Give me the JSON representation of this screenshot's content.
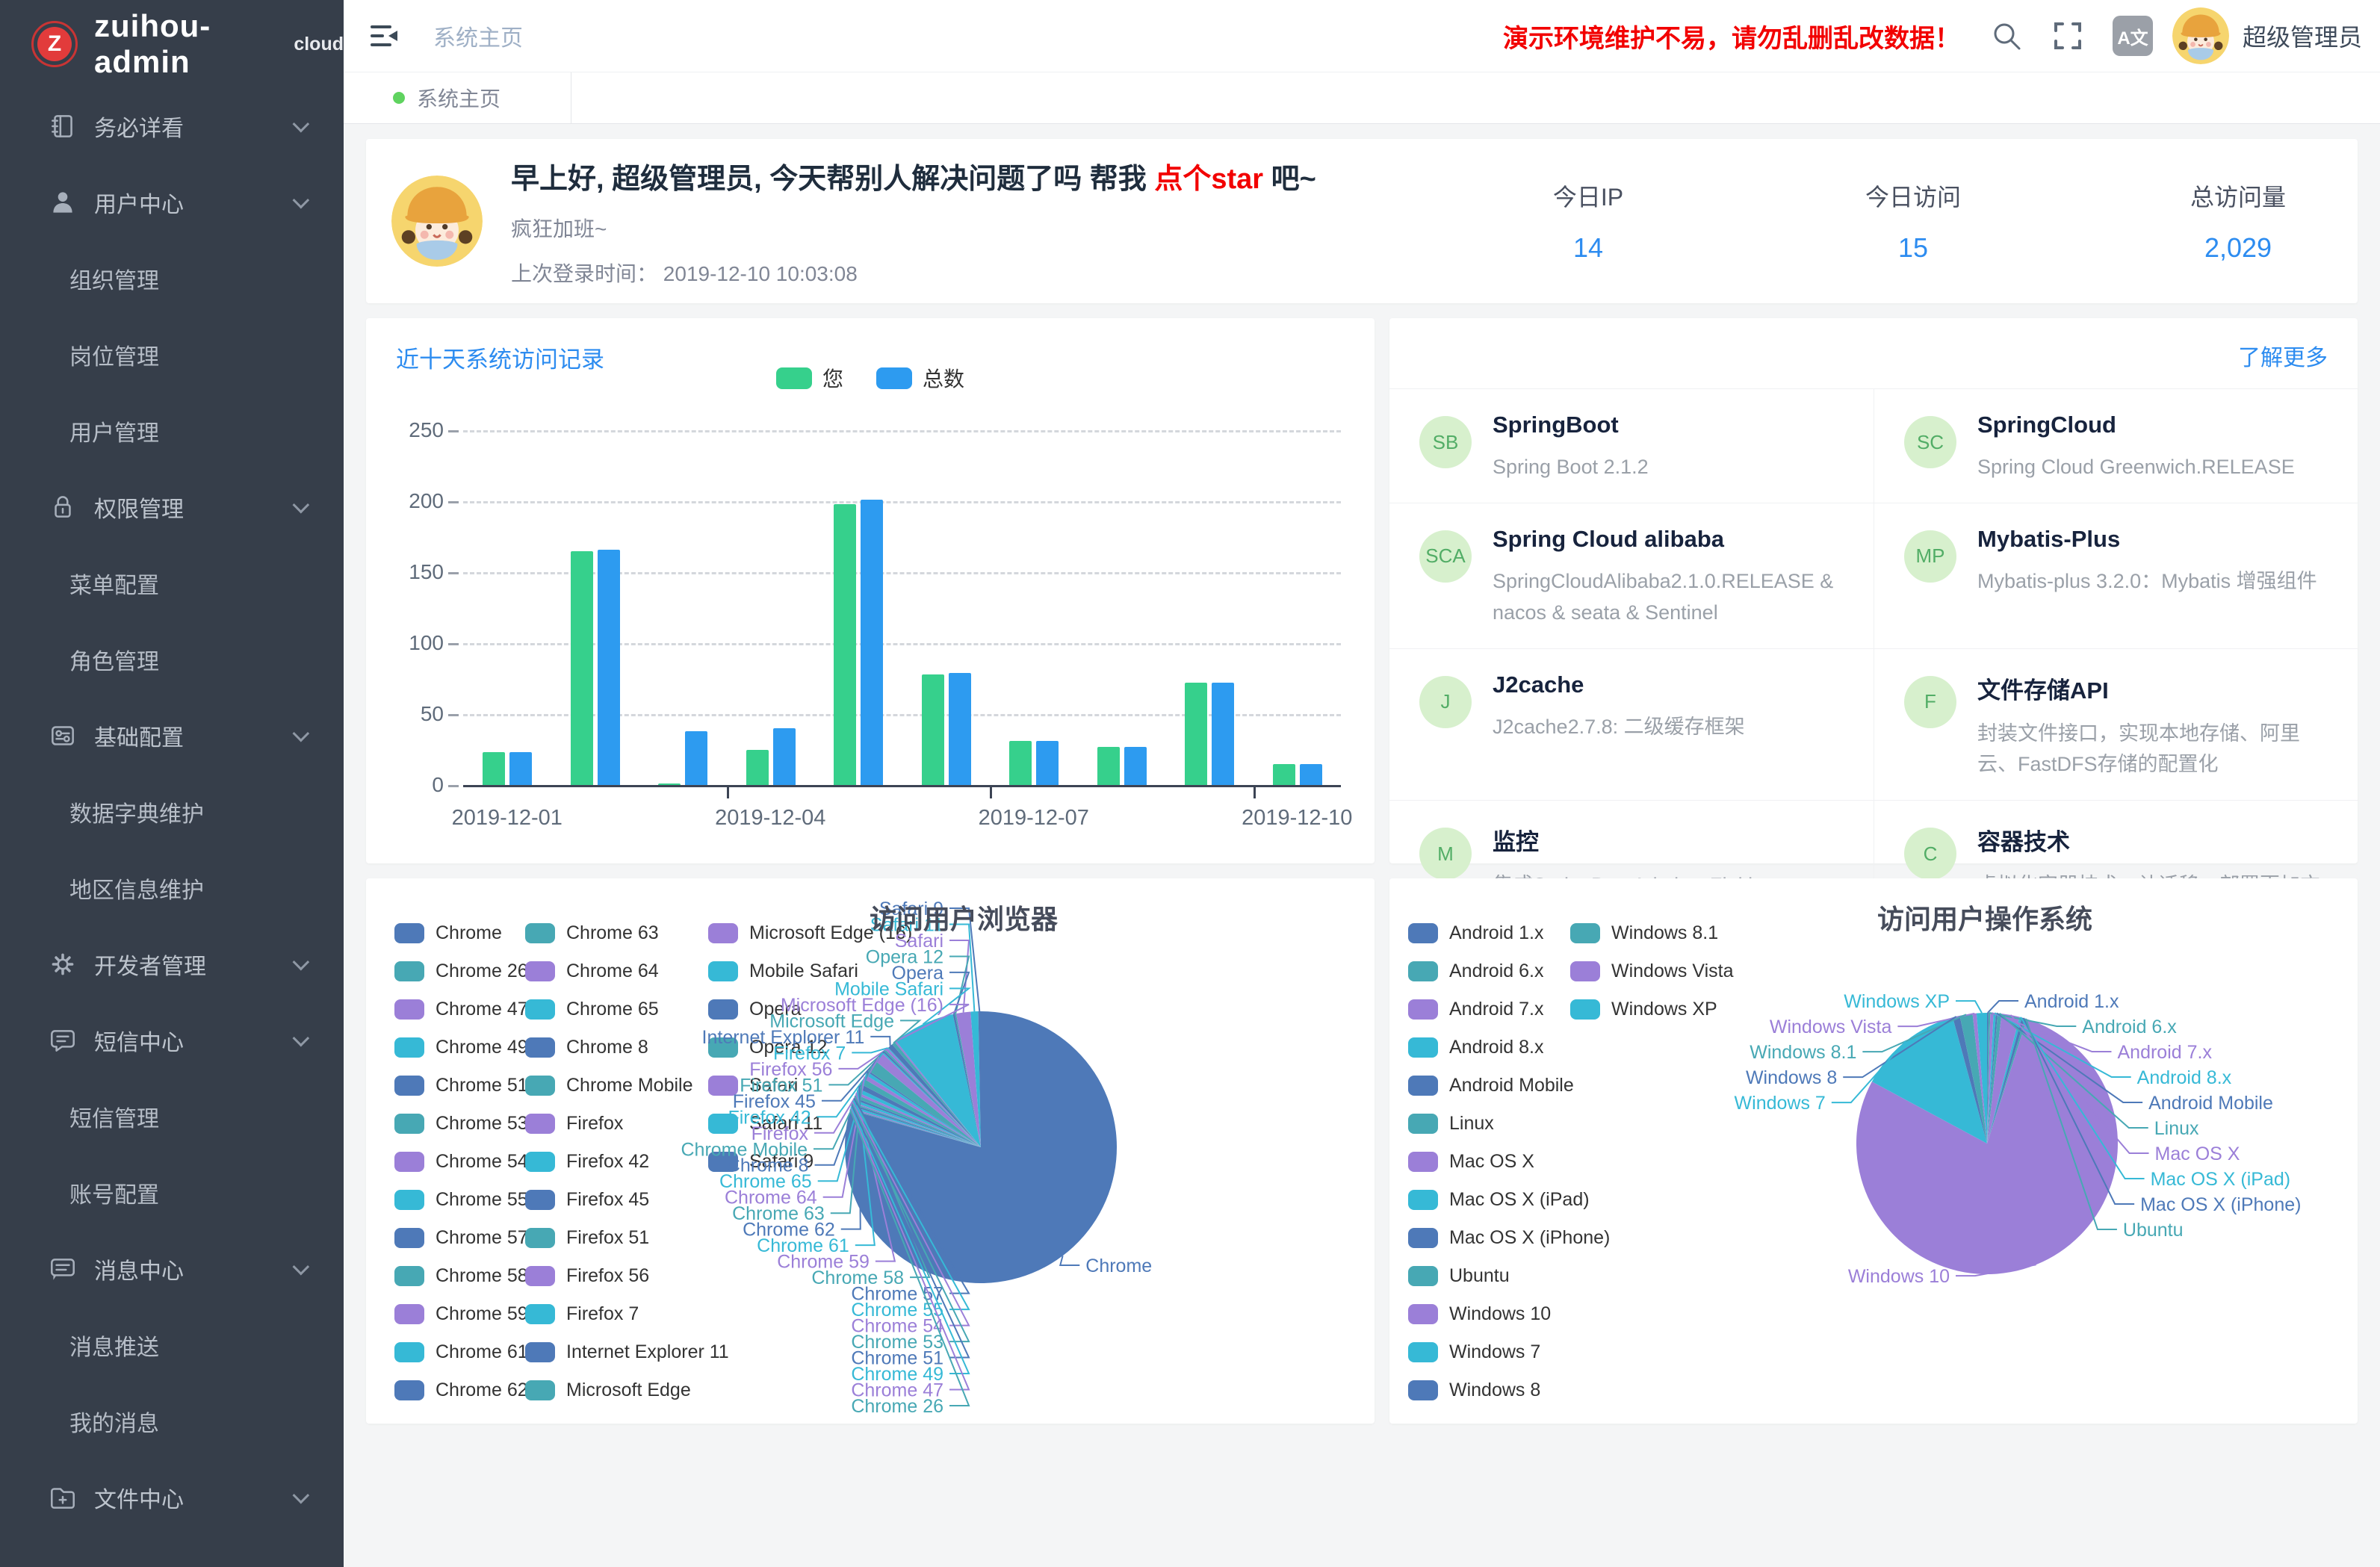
{
  "colors": {
    "accent_blue": "#2d8cf0",
    "warning_red": "#f20000",
    "bar_green": "#36d08c",
    "bar_blue": "#2d9bf0",
    "pie_palette": [
      "#4e79b8",
      "#47a8b4",
      "#9b7fd8",
      "#36b9d6"
    ],
    "sidebar_bg": "#363e4a",
    "tab_dot_green": "#5fd35f"
  },
  "sidebar": {
    "logo": {
      "letter": "Z",
      "title": "zuihou-admin",
      "suffix": "cloud"
    },
    "menu": [
      {
        "label": "务必详看",
        "icon": "book-icon",
        "children": []
      },
      {
        "label": "用户中心",
        "icon": "user-icon",
        "children": [
          "组织管理",
          "岗位管理",
          "用户管理"
        ]
      },
      {
        "label": "权限管理",
        "icon": "lock-icon",
        "children": [
          "菜单配置",
          "角色管理"
        ]
      },
      {
        "label": "基础配置",
        "icon": "config-icon",
        "children": [
          "数据字典维护",
          "地区信息维护"
        ]
      },
      {
        "label": "开发者管理",
        "icon": "gear-icon",
        "children": []
      },
      {
        "label": "短信中心",
        "icon": "sms-icon",
        "children": [
          "短信管理",
          "账号配置"
        ]
      },
      {
        "label": "消息中心",
        "icon": "message-icon",
        "children": [
          "消息推送",
          "我的消息"
        ]
      },
      {
        "label": "文件中心",
        "icon": "folder-icon",
        "children": []
      }
    ]
  },
  "header": {
    "breadcrumb": "系统主页",
    "warning": "演示环境维护不易，请勿乱删乱改数据！",
    "lang_icon_text": "A文",
    "username": "超级管理员"
  },
  "tabs": [
    {
      "label": "系统主页",
      "active": true
    }
  ],
  "greeting": {
    "title_prefix": "早上好, 超级管理员, 今天帮别人解决问题了吗 帮我 ",
    "title_link": "点个star",
    "title_suffix": " 吧~",
    "subtitle": "疯狂加班~",
    "last_login_label": "上次登录时间：",
    "last_login_value": "2019-12-10 10:03:08",
    "stats": [
      {
        "label": "今日IP",
        "value": "14"
      },
      {
        "label": "今日访问",
        "value": "15"
      },
      {
        "label": "总访问量",
        "value": "2,029"
      }
    ]
  },
  "tech_panel": {
    "more_link": "了解更多",
    "cards": [
      {
        "abbr": "SB",
        "title": "SpringBoot",
        "desc": "Spring Boot 2.1.2"
      },
      {
        "abbr": "SC",
        "title": "SpringCloud",
        "desc": "Spring Cloud Greenwich.RELEASE"
      },
      {
        "abbr": "SCA",
        "title": "Spring Cloud alibaba",
        "desc": "SpringCloudAlibaba2.1.0.RELEASE & nacos & seata & Sentinel"
      },
      {
        "abbr": "MP",
        "title": "Mybatis-Plus",
        "desc": "Mybatis-plus 3.2.0：Mybatis 增强组件"
      },
      {
        "abbr": "J",
        "title": "J2cache",
        "desc": "J2cache2.7.8: 二级缓存框架"
      },
      {
        "abbr": "F",
        "title": "文件存储API",
        "desc": "封装文件接口，实现本地存储、阿里云、FastDFS存储的配置化"
      },
      {
        "abbr": "M",
        "title": "监控",
        "desc": "集成SpringBootAdmin、Zipkin、Redis、Mysql、定时任务等监控，对系统进行全方位监控护航"
      },
      {
        "abbr": "C",
        "title": "容器技术",
        "desc": "虚拟化容器技术，让迁移、部署更加方便快捷"
      }
    ]
  },
  "chart_data": [
    {
      "type": "bar",
      "title": "近十天系统访问记录",
      "categories": [
        "2019-12-01",
        "2019-12-02",
        "2019-12-03",
        "2019-12-04",
        "2019-12-05",
        "2019-12-06",
        "2019-12-07",
        "2019-12-08",
        "2019-12-09",
        "2019-12-10"
      ],
      "series": [
        {
          "name": "您",
          "color": "#36d08c",
          "values": [
            23,
            165,
            1,
            25,
            198,
            78,
            31,
            27,
            72,
            15
          ]
        },
        {
          "name": "总数",
          "color": "#2d9bf0",
          "values": [
            23,
            166,
            38,
            40,
            201,
            79,
            31,
            27,
            72,
            15
          ]
        }
      ],
      "ylabel": "",
      "xlabel": "",
      "ylim": [
        0,
        250
      ],
      "yticks": [
        0,
        50,
        100,
        150,
        200,
        250
      ],
      "x_axis_labels_shown": [
        "2019-12-01",
        "2019-12-04",
        "2019-12-07",
        "2019-12-10"
      ],
      "grid": "dashed-horizontal",
      "legend_position": "top-center"
    },
    {
      "type": "pie",
      "title": "访问用户浏览器",
      "legend_position": "left",
      "items": [
        {
          "label": "Chrome",
          "value": 1586
        },
        {
          "label": "Chrome 26",
          "value": 2
        },
        {
          "label": "Chrome 47",
          "value": 3
        },
        {
          "label": "Chrome 49",
          "value": 5
        },
        {
          "label": "Chrome 51",
          "value": 4
        },
        {
          "label": "Chrome 53",
          "value": 3
        },
        {
          "label": "Chrome 54",
          "value": 3
        },
        {
          "label": "Chrome 55",
          "value": 6
        },
        {
          "label": "Chrome 57",
          "value": 5
        },
        {
          "label": "Chrome 58",
          "value": 8
        },
        {
          "label": "Chrome 59",
          "value": 6
        },
        {
          "label": "Chrome 61",
          "value": 9
        },
        {
          "label": "Chrome 62",
          "value": 12
        },
        {
          "label": "Chrome 63",
          "value": 14
        },
        {
          "label": "Chrome 64",
          "value": 10
        },
        {
          "label": "Chrome 65",
          "value": 8
        },
        {
          "label": "Chrome 8",
          "value": 4
        },
        {
          "label": "Chrome Mobile",
          "value": 28
        },
        {
          "label": "Firefox",
          "value": 24
        },
        {
          "label": "Firefox 42",
          "value": 3
        },
        {
          "label": "Firefox 45",
          "value": 4
        },
        {
          "label": "Firefox 51",
          "value": 4
        },
        {
          "label": "Firefox 56",
          "value": 6
        },
        {
          "label": "Firefox 7",
          "value": 2
        },
        {
          "label": "Internet Explorer 11",
          "value": 12
        },
        {
          "label": "Microsoft Edge",
          "value": 8
        },
        {
          "label": "Microsoft Edge (16)",
          "value": 4
        },
        {
          "label": "Mobile Safari",
          "value": 148
        },
        {
          "label": "Opera",
          "value": 5
        },
        {
          "label": "Opera 12",
          "value": 3
        },
        {
          "label": "Safari",
          "value": 34
        },
        {
          "label": "Safari 11",
          "value": 18
        },
        {
          "label": "Safari 9",
          "value": 6
        }
      ]
    },
    {
      "type": "pie",
      "title": "访问用户操作系统",
      "legend_position": "left",
      "items": [
        {
          "label": "Android 1.x",
          "value": 3
        },
        {
          "label": "Android 6.x",
          "value": 5
        },
        {
          "label": "Android 7.x",
          "value": 8
        },
        {
          "label": "Android 8.x",
          "value": 6
        },
        {
          "label": "Android Mobile",
          "value": 4
        },
        {
          "label": "Linux",
          "value": 10
        },
        {
          "label": "Mac OS X",
          "value": 45
        },
        {
          "label": "Mac OS X (iPad)",
          "value": 6
        },
        {
          "label": "Mac OS X (iPhone)",
          "value": 8
        },
        {
          "label": "Ubuntu",
          "value": 5
        },
        {
          "label": "Windows 10",
          "value": 1581,
          "label_side": "left"
        },
        {
          "label": "Windows 7",
          "value": 262
        },
        {
          "label": "Windows 8",
          "value": 18
        },
        {
          "label": "Windows 8.1",
          "value": 32
        },
        {
          "label": "Windows Vista",
          "value": 10
        },
        {
          "label": "Windows XP",
          "value": 26
        }
      ]
    }
  ]
}
